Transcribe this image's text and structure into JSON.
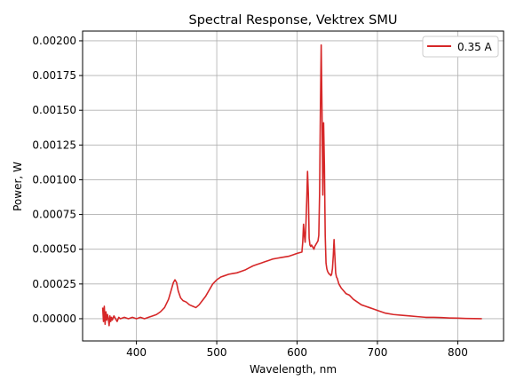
{
  "chart_data": {
    "type": "line",
    "title": "Spectral Response, Vektrex SMU",
    "xlabel": "Wavelength, nm",
    "ylabel": "Power, W",
    "xlim": [
      333,
      857
    ],
    "ylim": [
      -0.00016,
      0.00207
    ],
    "x_ticks": [
      400,
      500,
      600,
      700,
      800
    ],
    "x_tick_labels": [
      "400",
      "500",
      "600",
      "700",
      "800"
    ],
    "y_ticks": [
      0.0,
      0.00025,
      0.0005,
      0.00075,
      0.001,
      0.00125,
      0.0015,
      0.00175,
      0.002
    ],
    "y_tick_labels": [
      "0.00000",
      "0.00025",
      "0.00050",
      "0.00075",
      "0.00100",
      "0.00125",
      "0.00150",
      "0.00175",
      "0.00200"
    ],
    "grid": true,
    "legend_position": "top-right",
    "series": [
      {
        "name": "0.35 A",
        "color": "#d62728",
        "x": [
          358,
          359,
          360,
          361,
          362,
          363,
          364,
          365,
          366,
          367,
          368,
          369,
          370,
          372,
          374,
          376,
          378,
          380,
          385,
          390,
          395,
          400,
          405,
          410,
          415,
          420,
          425,
          430,
          435,
          440,
          443,
          446,
          448,
          450,
          452,
          455,
          458,
          462,
          466,
          470,
          474,
          478,
          482,
          486,
          490,
          495,
          500,
          505,
          510,
          515,
          520,
          525,
          530,
          535,
          540,
          545,
          550,
          555,
          560,
          565,
          570,
          575,
          580,
          585,
          590,
          595,
          600,
          603,
          606,
          607,
          608,
          609,
          610,
          611,
          612,
          613,
          614,
          615,
          616,
          617,
          618,
          619,
          620,
          621,
          622,
          623,
          624,
          625,
          626,
          627,
          628,
          629,
          630,
          631,
          632,
          633,
          634,
          635,
          636,
          637,
          638,
          639,
          640,
          641,
          642,
          643,
          644,
          645,
          646,
          647,
          648,
          649,
          650,
          652,
          655,
          658,
          661,
          665,
          670,
          675,
          680,
          685,
          690,
          695,
          700,
          710,
          720,
          730,
          740,
          750,
          760,
          770,
          780,
          790,
          800,
          810,
          820,
          830
        ],
        "y": [
          8e-05,
          -2e-05,
          9e-05,
          -4e-05,
          5e-05,
          -1e-05,
          3e-05,
          0.0,
          -5e-05,
          2e-05,
          -2e-05,
          1e-05,
          -1e-05,
          2e-05,
          0.0,
          -2e-05,
          1e-05,
          0.0,
          1e-05,
          0.0,
          1e-05,
          0.0,
          1e-05,
          0.0,
          1e-05,
          2e-05,
          3e-05,
          5e-05,
          8e-05,
          0.00014,
          0.0002,
          0.00026,
          0.00028,
          0.00026,
          0.0002,
          0.00015,
          0.00013,
          0.00012,
          0.0001,
          9e-05,
          8e-05,
          0.0001,
          0.00013,
          0.00016,
          0.0002,
          0.00025,
          0.00028,
          0.0003,
          0.00031,
          0.00032,
          0.000325,
          0.00033,
          0.00034,
          0.00035,
          0.000365,
          0.00038,
          0.00039,
          0.0004,
          0.00041,
          0.00042,
          0.00043,
          0.000435,
          0.00044,
          0.000445,
          0.00045,
          0.00046,
          0.00047,
          0.000475,
          0.00048,
          0.00055,
          0.00068,
          0.0006,
          0.00055,
          0.00068,
          0.00085,
          0.00106,
          0.0009,
          0.00058,
          0.00053,
          0.00052,
          0.00053,
          0.00052,
          0.00051,
          0.0005,
          0.00052,
          0.00053,
          0.00054,
          0.00055,
          0.00056,
          0.0006,
          0.0009,
          0.0015,
          0.00197,
          0.0015,
          0.00089,
          0.00141,
          0.0011,
          0.0006,
          0.0004,
          0.00036,
          0.00034,
          0.00033,
          0.00032,
          0.00032,
          0.00031,
          0.00032,
          0.00036,
          0.00045,
          0.00057,
          0.00045,
          0.00033,
          0.0003,
          0.00029,
          0.00025,
          0.00022,
          0.0002,
          0.00018,
          0.00017,
          0.00014,
          0.00012,
          0.0001,
          9e-05,
          8e-05,
          7e-05,
          6e-05,
          4e-05,
          3e-05,
          2.5e-05,
          2e-05,
          1.5e-05,
          1e-05,
          1e-05,
          8e-06,
          5e-06,
          4e-06,
          2e-06,
          1e-06,
          0.0
        ]
      }
    ]
  }
}
